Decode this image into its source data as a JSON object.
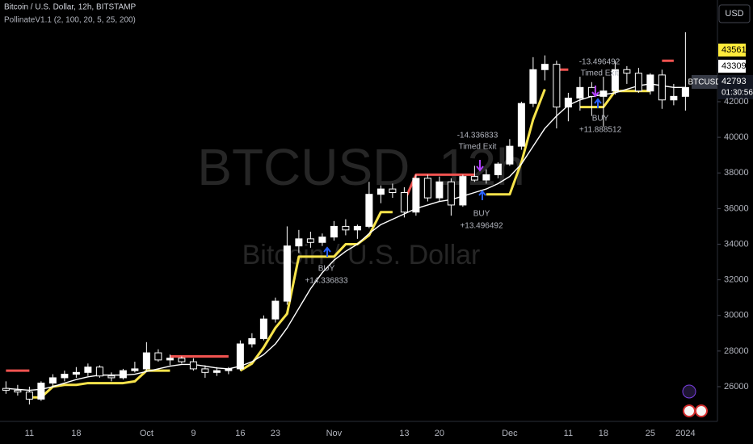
{
  "chart_data": {
    "type": "candlestick",
    "title": "Bitcoin / U.S. Dollar, 12h, BITSTAMP",
    "indicator": "PollinateV1.1 (2, 100, 20, 5, 25, 200)",
    "watermark_symbol": "BTCUSD, 12h",
    "watermark_name": "Bitcoin / U.S. Dollar",
    "currency": "USD",
    "symbol_label": "BTCUSD",
    "countdown": "01:30:56",
    "price_labels": [
      43561,
      43309,
      42793
    ],
    "categories": [
      null,
      null,
      "11",
      null,
      null,
      null,
      "18",
      null,
      null,
      null,
      null,
      null,
      "Oct",
      null,
      null,
      null,
      "9",
      null,
      null,
      null,
      "16",
      null,
      null,
      "23",
      null,
      null,
      null,
      null,
      "Nov",
      null,
      null,
      null,
      null,
      null,
      "13",
      null,
      null,
      "20",
      null,
      null,
      null,
      null,
      null,
      "Dec",
      null,
      null,
      null,
      null,
      "11",
      null,
      null,
      "18",
      null,
      null,
      null,
      "25",
      null,
      null,
      "2024"
    ],
    "open": [
      25900,
      25800,
      25700,
      25300,
      26200,
      26500,
      26700,
      26800,
      27100,
      26600,
      26500,
      26900,
      27000,
      27900,
      27500,
      27600,
      27400,
      27000,
      26800,
      26900,
      27000,
      28400,
      28700,
      29800,
      30800,
      33900,
      34300,
      34100,
      34400,
      35000,
      34800,
      35000,
      36800,
      37100,
      36900,
      35800,
      37700,
      36600,
      37500,
      36200,
      37800,
      37600,
      37900,
      38500,
      39500,
      41900,
      43800,
      44100,
      41700,
      42200,
      42800,
      42300,
      42600,
      43800,
      43600,
      42600,
      43500,
      42100,
      42300
    ],
    "high": [
      26300,
      26100,
      26000,
      26300,
      26700,
      26900,
      27100,
      27300,
      27200,
      26800,
      27000,
      27400,
      28500,
      28100,
      27800,
      27700,
      27600,
      27200,
      27100,
      27100,
      28600,
      29000,
      30000,
      31000,
      35000,
      34800,
      34700,
      34600,
      35300,
      35400,
      35100,
      37500,
      37300,
      37400,
      37200,
      37900,
      37900,
      37800,
      37700,
      37900,
      38400,
      38200,
      38600,
      39900,
      42000,
      44500,
      44600,
      44300,
      42500,
      43400,
      43100,
      43400,
      44300,
      44000,
      43900,
      43600,
      43800,
      43000,
      45900
    ],
    "low": [
      25600,
      25500,
      25000,
      25200,
      26000,
      26300,
      26500,
      26600,
      26500,
      26300,
      26400,
      26800,
      26900,
      27400,
      27200,
      27300,
      26900,
      26500,
      26600,
      26700,
      26900,
      28200,
      28600,
      29600,
      30600,
      33500,
      33800,
      33900,
      34200,
      34500,
      34300,
      34900,
      36300,
      36600,
      35500,
      35600,
      36400,
      36400,
      35600,
      36100,
      37500,
      37400,
      37700,
      38400,
      39300,
      41700,
      43200,
      40500,
      40900,
      41500,
      41200,
      40600,
      42400,
      43000,
      42500,
      42400,
      41600,
      41800,
      41500
    ],
    "close": [
      25800,
      25700,
      25300,
      26200,
      26500,
      26700,
      26800,
      27100,
      26600,
      26500,
      26900,
      27000,
      27900,
      27500,
      27600,
      27400,
      27000,
      26800,
      26900,
      27000,
      28400,
      28700,
      29800,
      30800,
      33900,
      34300,
      34100,
      34400,
      35000,
      34800,
      35000,
      36800,
      37100,
      36900,
      35800,
      37700,
      36600,
      37500,
      36200,
      37800,
      37600,
      37900,
      38500,
      39500,
      41900,
      43800,
      44100,
      41700,
      42200,
      42800,
      42300,
      42600,
      43800,
      43600,
      42600,
      43500,
      42100,
      42300,
      42793
    ],
    "up_color": "#ffffff",
    "down_color": "#000000",
    "series": [
      {
        "color": "#f7e34b",
        "values": [
          null,
          null,
          25400,
          25400,
          26000,
          26100,
          26100,
          26200,
          26200,
          26200,
          26200,
          26300,
          26900,
          26900,
          26900,
          null,
          null,
          null,
          null,
          null,
          26900,
          27300,
          28200,
          29300,
          30100,
          33300,
          33300,
          33300,
          33300,
          34000,
          34000,
          34500,
          35800,
          35800,
          null,
          null,
          null,
          null,
          null,
          null,
          null,
          36800,
          36800,
          36800,
          38600,
          41000,
          42700,
          null,
          null,
          41700,
          41700,
          41700,
          42600,
          42600,
          42600,
          42600,
          null,
          null,
          41500
        ]
      },
      {
        "color": "#f05350",
        "values": [
          26900,
          26900,
          26900,
          null,
          null,
          null,
          null,
          null,
          null,
          null,
          null,
          null,
          null,
          null,
          27700,
          27700,
          27700,
          27700,
          27700,
          27700,
          null,
          null,
          null,
          null,
          null,
          null,
          null,
          null,
          null,
          null,
          null,
          null,
          null,
          null,
          36400,
          37900,
          37900,
          37900,
          37900,
          37900,
          37900,
          null,
          null,
          null,
          null,
          null,
          null,
          43800,
          43800,
          null,
          null,
          null,
          null,
          null,
          null,
          null,
          44300,
          44300,
          null
        ]
      },
      {
        "color": "#ffffff",
        "values": [
          25900,
          25850,
          25800,
          25850,
          26000,
          26200,
          26400,
          26550,
          26650,
          26650,
          26650,
          26700,
          26850,
          27000,
          27150,
          27250,
          27250,
          27150,
          27050,
          27000,
          27150,
          27400,
          27800,
          28400,
          29300,
          30400,
          31500,
          32400,
          33100,
          33600,
          34000,
          34600,
          35100,
          35400,
          35700,
          36000,
          36200,
          36400,
          36500,
          36700,
          36900,
          37100,
          37400,
          37800,
          38500,
          39500,
          40500,
          41200,
          41800,
          42100,
          42300,
          42400,
          42500,
          42700,
          42900,
          43000,
          42900,
          42800,
          42800
        ]
      }
    ],
    "ylim": [
      24050,
      47710
    ],
    "yticks": [
      26000,
      28000,
      30000,
      32000,
      34000,
      36000,
      38000,
      40000,
      42000
    ],
    "annotations": [
      {
        "title": "BUY",
        "value": "+14.336833"
      },
      {
        "value": "-14.336833",
        "title": "Timed Exit"
      },
      {
        "title": "BUY",
        "value": "+13.496492"
      },
      {
        "value": "-13.496492",
        "title": "Timed Exit"
      },
      {
        "title": "BUY",
        "value": "+11.888512"
      }
    ]
  }
}
